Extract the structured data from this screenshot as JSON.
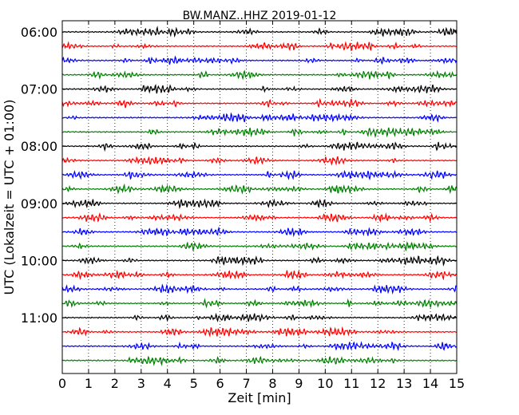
{
  "chart_data": {
    "type": "line",
    "subtype": "dayplot-seismogram",
    "title": "BW.MANZ..HHZ 2019-01-12",
    "xlabel": "Zeit  [min]",
    "ylabel": "UTC (Lokalzeit = UTC + 01:00)",
    "xlim": [
      0,
      15
    ],
    "x_ticks": [
      0,
      1,
      2,
      3,
      4,
      5,
      6,
      7,
      8,
      9,
      10,
      11,
      12,
      13,
      14,
      15
    ],
    "x_tick_labels": [
      "0",
      "1",
      "2",
      "3",
      "4",
      "5",
      "6",
      "7",
      "8",
      "9",
      "10",
      "11",
      "12",
      "13",
      "14",
      "15"
    ],
    "y_tick_labels": [
      "06:00",
      "07:00",
      "08:00",
      "09:00",
      "10:00",
      "11:00"
    ],
    "trace_interval_minutes": 15,
    "num_traces": 24,
    "first_trace_start": "06:00",
    "trace_colors": [
      "#000000",
      "#ff0000",
      "#0000ff",
      "#008000"
    ],
    "vertical_grid": "dotted",
    "grid": true
  }
}
